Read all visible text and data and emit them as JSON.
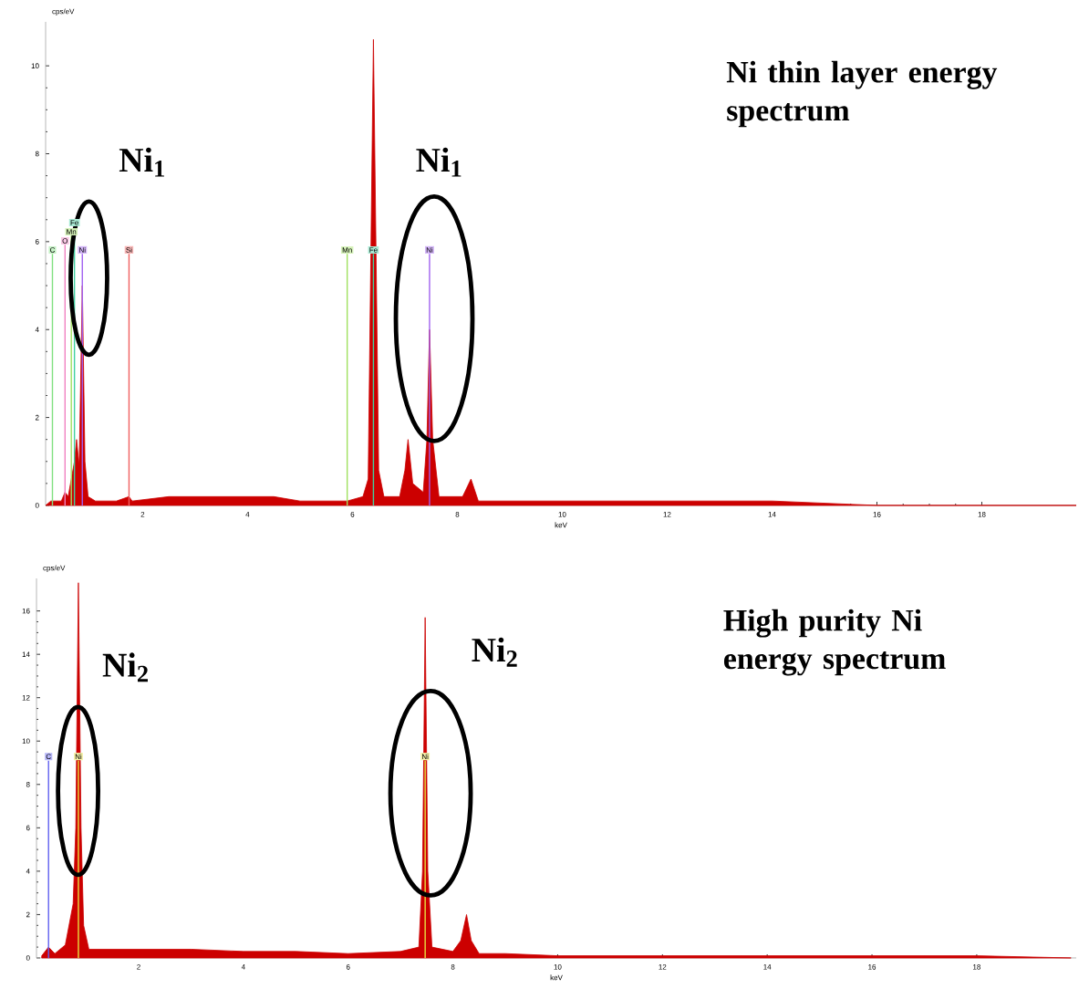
{
  "chart_data": [
    {
      "type": "area",
      "title": "Ni thin layer energy spectrum",
      "xlabel": "keV",
      "ylabel": "cps/eV",
      "color": "#cc0000",
      "x": [
        0.15,
        0.25,
        0.28,
        0.32,
        0.45,
        0.52,
        0.58,
        0.64,
        0.7,
        0.74,
        0.79,
        0.85,
        0.9,
        0.96,
        1.1,
        1.5,
        1.74,
        1.8,
        2.5,
        3.0,
        3.5,
        4.0,
        4.5,
        5.0,
        5.5,
        5.9,
        6.2,
        6.3,
        6.4,
        6.5,
        6.6,
        6.9,
        7.0,
        7.06,
        7.15,
        7.35,
        7.42,
        7.47,
        7.53,
        7.65,
        8.1,
        8.26,
        8.4,
        9.0,
        10,
        12,
        14,
        16,
        18,
        19.8
      ],
      "values": [
        0.0,
        0.1,
        0.1,
        0.1,
        0.1,
        0.3,
        0.2,
        0.6,
        1.0,
        1.5,
        0.9,
        5.0,
        1.0,
        0.2,
        0.1,
        0.1,
        0.2,
        0.1,
        0.2,
        0.2,
        0.2,
        0.2,
        0.2,
        0.1,
        0.1,
        0.1,
        0.2,
        0.6,
        10.6,
        0.8,
        0.2,
        0.2,
        0.8,
        1.5,
        0.5,
        0.3,
        1.5,
        4.0,
        1.5,
        0.2,
        0.2,
        0.6,
        0.1,
        0.1,
        0.1,
        0.1,
        0.1,
        0.0,
        0.0,
        0.0
      ],
      "xlim": [
        0.15,
        19.8
      ],
      "ylim": [
        0,
        11
      ],
      "xticks": [
        2,
        4,
        6,
        8,
        10,
        12,
        14,
        16,
        18
      ],
      "yticks": [
        0,
        2,
        4,
        6,
        8,
        10
      ],
      "ref_lines": [
        {
          "axis": "x",
          "value": 0.28,
          "label": "C",
          "color": "#80e080"
        },
        {
          "axis": "x",
          "value": 0.52,
          "label": "O",
          "color": "#f080c0"
        },
        {
          "axis": "x",
          "value": 0.64,
          "label": "Mn",
          "color": "#a0e060"
        },
        {
          "axis": "x",
          "value": 0.7,
          "label": "Fe",
          "color": "#40d0a0"
        },
        {
          "axis": "x",
          "value": 0.85,
          "label": "Ni",
          "color": "#a060f0"
        },
        {
          "axis": "x",
          "value": 1.74,
          "label": "Si",
          "color": "#f06060"
        },
        {
          "axis": "x",
          "value": 5.9,
          "label": "Mn",
          "color": "#a0e060"
        },
        {
          "axis": "x",
          "value": 6.4,
          "label": "Fe",
          "color": "#40d0a0"
        },
        {
          "axis": "x",
          "value": 7.47,
          "label": "Ni",
          "color": "#a060f0"
        }
      ],
      "annotations": [
        "Ni$_{1}$",
        "Ni$_{1}$"
      ]
    },
    {
      "type": "area",
      "title": "High purity Ni energy spectrum",
      "xlabel": "keV",
      "ylabel": "cps/eV",
      "color": "#cc0000",
      "x": [
        0.15,
        0.28,
        0.4,
        0.6,
        0.75,
        0.8,
        0.85,
        0.9,
        0.95,
        1.05,
        1.5,
        2.0,
        3.0,
        4.0,
        5.0,
        6.0,
        7.0,
        7.35,
        7.42,
        7.47,
        7.52,
        7.6,
        8.0,
        8.15,
        8.26,
        8.35,
        8.5,
        9,
        10,
        12,
        14,
        16,
        18,
        19.8
      ],
      "values": [
        0.1,
        0.5,
        0.2,
        0.6,
        2.5,
        6,
        17.3,
        6,
        1.5,
        0.4,
        0.4,
        0.4,
        0.4,
        0.3,
        0.3,
        0.2,
        0.3,
        0.5,
        4,
        15.7,
        4,
        0.5,
        0.3,
        0.8,
        2.0,
        0.8,
        0.2,
        0.2,
        0.1,
        0.1,
        0.1,
        0.1,
        0.1,
        0.0
      ],
      "xlim": [
        0.05,
        19.9
      ],
      "ylim": [
        0,
        17.5
      ],
      "xticks": [
        2,
        4,
        6,
        8,
        10,
        12,
        14,
        16,
        18
      ],
      "yticks": [
        0,
        2,
        4,
        6,
        8,
        10,
        12,
        14,
        16
      ],
      "ref_lines": [
        {
          "axis": "x",
          "value": 0.28,
          "label": "C",
          "color": "#6060f0"
        },
        {
          "axis": "x",
          "value": 0.85,
          "label": "Ni",
          "color": "#e8e040"
        },
        {
          "axis": "x",
          "value": 7.47,
          "label": "Ni",
          "color": "#e8e040"
        }
      ],
      "annotations": [
        "Ni$_{2}$",
        "Ni$_{2}$"
      ]
    }
  ]
}
